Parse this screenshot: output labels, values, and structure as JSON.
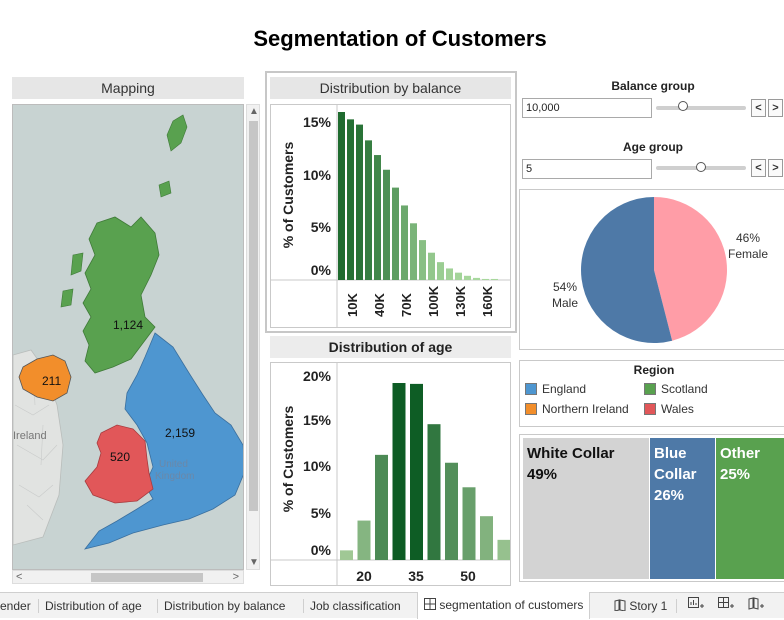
{
  "title": "Segmentation of Customers",
  "mapping": {
    "header": "Mapping",
    "labels": {
      "scotland": "1,124",
      "northern_ireland": "211",
      "wales": "520",
      "england": "2,159",
      "ireland": "Ireland",
      "uk_line1": "United",
      "uk_line2": "Kingdom"
    }
  },
  "balance_chart": {
    "header": "Distribution by balance",
    "ylabel": "% of Customers",
    "yticks": [
      "15%",
      "10%",
      "5%",
      "0%"
    ],
    "xticks": [
      "10K",
      "40K",
      "70K",
      "100K",
      "130K",
      "160K"
    ]
  },
  "age_chart": {
    "header": "Distribution of age",
    "ylabel": "% of Customers",
    "yticks": [
      "20%",
      "15%",
      "10%",
      "5%",
      "0%"
    ],
    "xticks": [
      "20",
      "35",
      "50"
    ]
  },
  "controls": {
    "balance_group": {
      "label": "Balance group",
      "value": "10,000",
      "level": 0.3
    },
    "age_group": {
      "label": "Age group",
      "value": "5",
      "level": 0.5
    },
    "prev": "<",
    "next": ">"
  },
  "pie": {
    "female_pct": "46%",
    "female_label": "Female",
    "male_pct": "54%",
    "male_label": "Male",
    "colors": {
      "female": "#ff9da7",
      "male": "#4e79a7"
    }
  },
  "region_legend": {
    "title": "Region",
    "items": [
      {
        "label": "England",
        "color": "#4e96d0"
      },
      {
        "label": "Scotland",
        "color": "#59a14f"
      },
      {
        "label": "Northern Ireland",
        "color": "#f28e2b"
      },
      {
        "label": "Wales",
        "color": "#e15759"
      }
    ]
  },
  "job_tree": {
    "white": {
      "line1": "White Collar",
      "pct": "49%",
      "color": "#d3d3d3"
    },
    "blue": {
      "line1": "Blue",
      "line2": "Collar",
      "pct": "26%",
      "color": "#4e79a7"
    },
    "other": {
      "line1": "Other",
      "pct": "25%",
      "color": "#59a14f"
    }
  },
  "tabs": {
    "t0": "ender",
    "t1": "Distribution of age",
    "t2": "Distribution by balance",
    "t3": "Job classification",
    "t4": "segmentation of customers",
    "t5": "Story 1"
  },
  "chart_data": [
    {
      "type": "bar",
      "title": "Distribution by balance",
      "ylabel": "% of Customers",
      "xlabel": "",
      "ylim": [
        0,
        16
      ],
      "x": [
        0,
        10000,
        20000,
        30000,
        40000,
        50000,
        60000,
        70000,
        80000,
        90000,
        100000,
        110000,
        120000,
        130000,
        140000,
        150000,
        160000,
        170000
      ],
      "values": [
        16.0,
        15.3,
        14.8,
        13.3,
        11.9,
        10.5,
        8.8,
        7.1,
        5.4,
        3.8,
        2.6,
        1.7,
        1.1,
        0.7,
        0.4,
        0.2,
        0.1,
        0.1
      ]
    },
    {
      "type": "bar",
      "title": "Distribution of age",
      "ylabel": "% of Customers",
      "xlabel": "",
      "ylim": [
        0,
        21
      ],
      "x": [
        15,
        20,
        25,
        30,
        35,
        40,
        45,
        50,
        55,
        60
      ],
      "values": [
        1.1,
        4.5,
        12.0,
        20.2,
        20.1,
        15.5,
        11.1,
        8.3,
        5.0,
        2.3
      ]
    }
  ]
}
